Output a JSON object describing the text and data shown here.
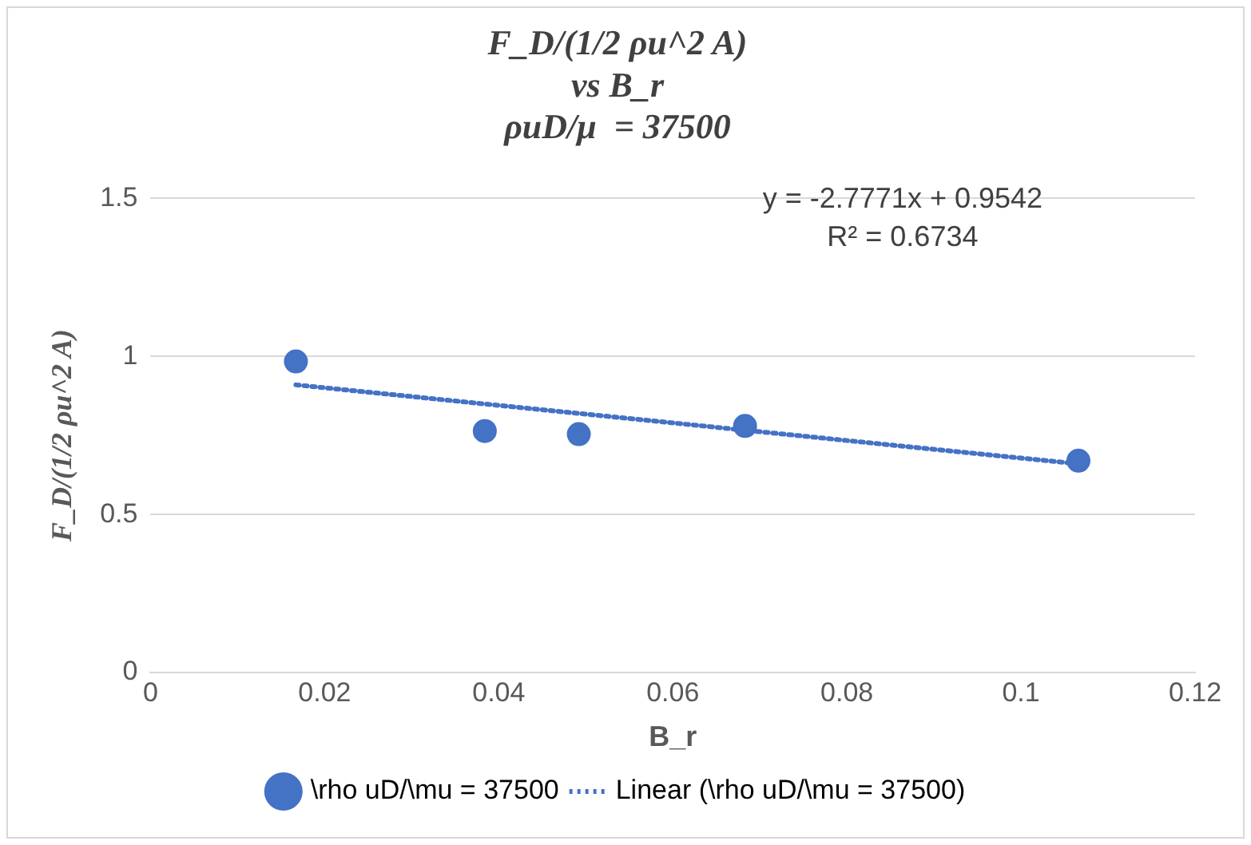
{
  "chart_data": {
    "type": "scatter",
    "title": "F_D/(1/2 ρu^2 A)\nvs B_r\nρuD/μ  = 37500",
    "xlabel": "B_r",
    "ylabel": "F_D/(1/2 ρu^2 A)",
    "xlim": [
      0,
      0.12
    ],
    "xticks": [
      0,
      0.02,
      0.04,
      0.06,
      0.08,
      0.1,
      0.12
    ],
    "ylim": [
      0,
      1.5
    ],
    "yticks": [
      0,
      0.5,
      1,
      1.5
    ],
    "series": [
      {
        "name": "\\rho uD/\\mu = 37500",
        "color": "#4472c4",
        "x": [
          0.0167,
          0.0384,
          0.0492,
          0.0683,
          0.1066
        ],
        "values": [
          0.984,
          0.764,
          0.754,
          0.78,
          0.67
        ],
        "marker": "circle"
      },
      {
        "name": "Linear (\\rho uD/\\mu = 37500)",
        "type": "line",
        "color": "#4472c4",
        "x": [
          0.0167,
          0.1066
        ],
        "values": [
          0.91,
          0.66
        ],
        "marker": "none",
        "line_style": "dotted"
      }
    ],
    "annotations": [
      "y = -2.7771x + 0.9542\nR² = 0.6734"
    ],
    "grid": "y",
    "legend": "bottom"
  }
}
